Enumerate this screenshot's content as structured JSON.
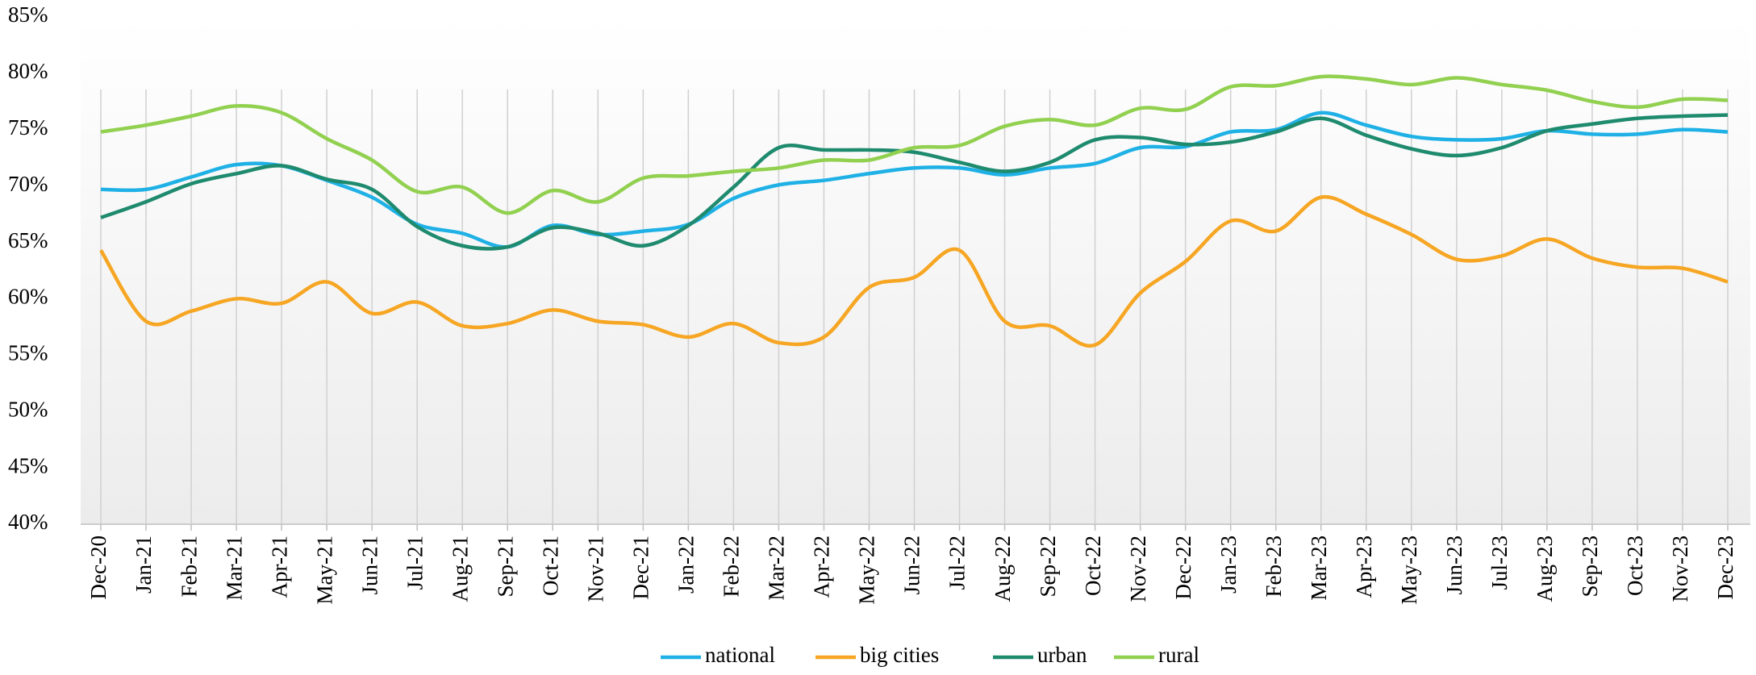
{
  "chart_data": {
    "type": "line",
    "categories": [
      "Dec-20",
      "Jan-21",
      "Feb-21",
      "Mar-21",
      "Apr-21",
      "May-21",
      "Jun-21",
      "Jul-21",
      "Aug-21",
      "Sep-21",
      "Oct-21",
      "Nov-21",
      "Dec-21",
      "Jan-22",
      "Feb-22",
      "Mar-22",
      "Apr-22",
      "May-22",
      "Jun-22",
      "Jul-22",
      "Aug-22",
      "Sep-22",
      "Oct-22",
      "Nov-22",
      "Dec-22",
      "Jan-23",
      "Feb-23",
      "Mar-23",
      "Apr-23",
      "May-23",
      "Jun-23",
      "Jul-23",
      "Aug-23",
      "Sep-23",
      "Oct-23",
      "Nov-23",
      "Dec-23"
    ],
    "series": [
      {
        "name": "national",
        "color": "#1fb1e6",
        "values": [
          69.7,
          69.7,
          70.8,
          71.9,
          71.8,
          70.5,
          69.0,
          66.6,
          65.8,
          64.6,
          66.5,
          65.7,
          66.0,
          66.6,
          68.9,
          70.1,
          70.5,
          71.1,
          71.6,
          71.6,
          71.0,
          71.6,
          72.0,
          73.4,
          73.5,
          74.8,
          75.0,
          76.5,
          75.4,
          74.4,
          74.1,
          74.2,
          74.9,
          74.6,
          74.6,
          75.0,
          74.8
        ]
      },
      {
        "name": "big cities",
        "color": "#f6a623",
        "values": [
          64.3,
          58.0,
          58.9,
          60.0,
          59.6,
          61.5,
          58.7,
          59.7,
          57.6,
          57.8,
          59.0,
          58.0,
          57.7,
          56.6,
          57.8,
          56.1,
          56.6,
          61.0,
          61.9,
          64.3,
          58.0,
          57.6,
          55.9,
          60.5,
          63.3,
          66.9,
          66.0,
          69.0,
          67.5,
          65.7,
          63.5,
          63.8,
          65.3,
          63.6,
          62.8,
          62.7,
          61.5
        ]
      },
      {
        "name": "urban",
        "color": "#1e8a6e",
        "values": [
          67.2,
          68.6,
          70.2,
          71.1,
          71.8,
          70.6,
          69.7,
          66.4,
          64.7,
          64.6,
          66.3,
          65.8,
          64.7,
          66.5,
          69.9,
          73.4,
          73.2,
          73.2,
          73.0,
          72.1,
          71.3,
          72.1,
          74.1,
          74.3,
          73.7,
          73.9,
          74.8,
          76.0,
          74.5,
          73.3,
          72.7,
          73.4,
          74.9,
          75.5,
          76.0,
          76.2,
          76.3
        ]
      },
      {
        "name": "rural",
        "color": "#92d050",
        "values": [
          74.8,
          75.4,
          76.2,
          77.1,
          76.5,
          74.2,
          72.3,
          69.5,
          69.9,
          67.6,
          69.6,
          68.6,
          70.7,
          70.9,
          71.3,
          71.6,
          72.3,
          72.3,
          73.4,
          73.6,
          75.3,
          75.9,
          75.4,
          76.9,
          76.8,
          78.8,
          78.9,
          79.7,
          79.5,
          79.0,
          79.6,
          79.0,
          78.5,
          77.5,
          77.0,
          77.7,
          77.6
        ]
      }
    ],
    "ylim": [
      40,
      85
    ],
    "yticks": [
      {
        "value": 40,
        "label": "40%"
      },
      {
        "value": 45,
        "label": "45%"
      },
      {
        "value": 50,
        "label": "50%"
      },
      {
        "value": 55,
        "label": "55%"
      },
      {
        "value": 60,
        "label": "60%"
      },
      {
        "value": 65,
        "label": "65%"
      },
      {
        "value": 70,
        "label": "70%"
      },
      {
        "value": 75,
        "label": "75%"
      },
      {
        "value": 80,
        "label": "80%"
      },
      {
        "value": 85,
        "label": "85%"
      }
    ],
    "grid": true,
    "legend": "bottom"
  }
}
